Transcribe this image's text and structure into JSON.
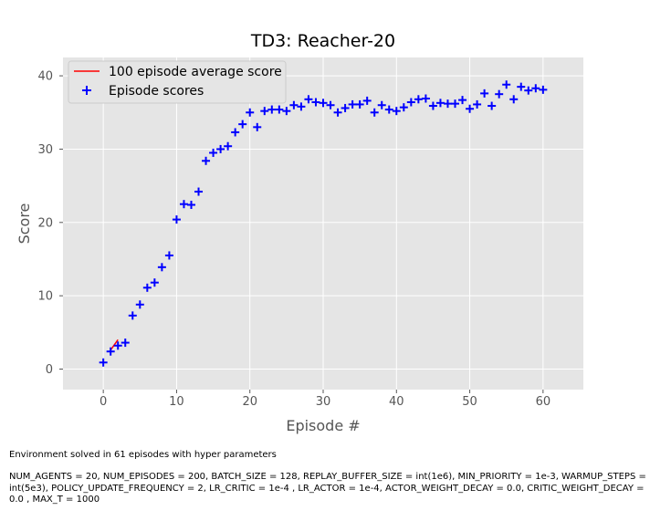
{
  "chart_data": {
    "type": "scatter",
    "title": "TD3: Reacher-20",
    "xlabel": "Episode #",
    "ylabel": "Score",
    "xlim": [
      -5.5,
      65.5
    ],
    "ylim": [
      -2.8,
      42.5
    ],
    "xticks": [
      0,
      10,
      20,
      30,
      40,
      50,
      60
    ],
    "yticks": [
      0,
      10,
      20,
      30,
      40
    ],
    "grid": true,
    "legend_position": "top-left",
    "series": [
      {
        "name": "100 episode average score",
        "type": "line",
        "color": "#ff0000",
        "x": [
          1,
          2
        ],
        "y": [
          2.6,
          4.0
        ]
      },
      {
        "name": "Episode scores",
        "type": "scatter",
        "marker": "plus",
        "color": "#0000ff",
        "x": [
          0,
          1,
          2,
          3,
          4,
          5,
          6,
          7,
          8,
          9,
          10,
          11,
          12,
          13,
          14,
          15,
          16,
          17,
          18,
          19,
          20,
          21,
          22,
          23,
          24,
          25,
          26,
          27,
          28,
          29,
          30,
          31,
          32,
          33,
          34,
          35,
          36,
          37,
          38,
          39,
          40,
          41,
          42,
          43,
          44,
          45,
          46,
          47,
          48,
          49,
          50,
          51,
          52,
          53,
          54,
          55,
          56,
          57,
          58,
          59,
          60
        ],
        "y": [
          0.9,
          2.4,
          3.2,
          3.6,
          7.3,
          8.8,
          11.1,
          11.8,
          13.9,
          15.5,
          20.4,
          22.5,
          22.4,
          24.2,
          28.4,
          29.5,
          30.0,
          30.4,
          32.3,
          33.4,
          35.0,
          33.0,
          35.2,
          35.4,
          35.4,
          35.2,
          36.0,
          35.8,
          36.8,
          36.4,
          36.3,
          36.0,
          35.0,
          35.6,
          36.1,
          36.1,
          36.6,
          35.0,
          36.0,
          35.4,
          35.2,
          35.7,
          36.4,
          36.8,
          36.9,
          35.9,
          36.3,
          36.2,
          36.2,
          36.7,
          35.5,
          36.1,
          37.6,
          35.9,
          37.5,
          38.8,
          36.8,
          38.5,
          38.0,
          38.3,
          38.1
        ]
      }
    ]
  },
  "caption": {
    "line1": "Environment solved in 61 episodes with hyper parameters",
    "line2": "NUM_AGENTS = 20, NUM_EPISODES = 200, BATCH_SIZE = 128, REPLAY_BUFFER_SIZE = int(1e6), MIN_PRIORITY = 1e-3, WARMUP_STEPS = int(5e3), POLICY_UPDATE_FREQUENCY = 2, LR_CRITIC = 1e-4 , LR_ACTOR = 1e-4, ACTOR_WEIGHT_DECAY = 0.0, CRITIC_WEIGHT_DECAY = 0.0 , MAX_T = 1000"
  }
}
